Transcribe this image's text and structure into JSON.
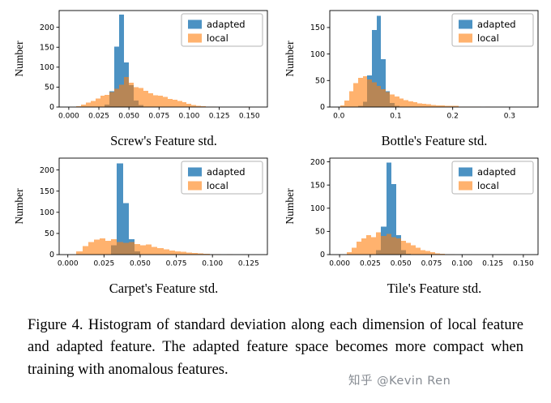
{
  "figure": {
    "caption": "Figure 4.  Histogram of standard deviation along each dimension of local feature and adapted feature.  The adapted feature space becomes more compact when training with anomalous features.",
    "watermark": "知乎 @Kevin Ren"
  },
  "chart_data": [
    {
      "type": "histogram",
      "title": "Screw's Feature std.",
      "ylabel": "Number",
      "legend_position": "upper right",
      "xlim": [
        -0.008,
        0.165
      ],
      "ylim": [
        0,
        242
      ],
      "x_ticks": [
        0,
        0.025,
        0.05,
        0.075,
        0.1,
        0.125,
        0.15
      ],
      "x_tick_labels": [
        "0.000",
        "0.025",
        "0.050",
        "0.075",
        "0.100",
        "0.125",
        "0.150"
      ],
      "y_ticks": [
        0,
        50,
        100,
        150,
        200
      ],
      "bin_start": 0.002,
      "bin_width": 0.004,
      "series": [
        {
          "name": "adapted",
          "color": "#1f77b4",
          "opacity": 0.8,
          "counts": [
            0,
            0,
            0,
            0,
            0,
            0,
            0,
            6,
            40,
            152,
            232,
            112,
            55,
            16,
            5,
            0,
            0,
            0,
            0,
            0,
            0,
            0,
            0,
            0,
            0,
            0,
            0,
            0,
            0,
            0,
            0,
            0,
            0,
            0,
            0,
            0,
            0,
            0,
            0,
            0
          ]
        },
        {
          "name": "local",
          "color": "#ff7f0e",
          "opacity": 0.6,
          "counts": [
            0,
            2,
            6,
            11,
            15,
            21,
            28,
            31,
            38,
            46,
            56,
            75,
            61,
            50,
            48,
            41,
            35,
            30,
            28,
            25,
            20,
            18,
            15,
            12,
            8,
            5,
            3,
            2,
            1,
            1,
            0,
            0,
            0,
            0,
            0,
            0,
            1,
            0,
            0,
            0
          ]
        }
      ]
    },
    {
      "type": "histogram",
      "title": "Bottle's Feature std.",
      "ylabel": "Number",
      "legend_position": "upper right",
      "xlim": [
        -0.016,
        0.35
      ],
      "ylim": [
        0,
        182
      ],
      "x_ticks": [
        0,
        0.1,
        0.2,
        0.3
      ],
      "x_tick_labels": [
        "0.0",
        "0.1",
        "0.2",
        "0.3"
      ],
      "y_ticks": [
        0,
        50,
        100,
        150
      ],
      "bin_start": 0.002,
      "bin_width": 0.008,
      "series": [
        {
          "name": "adapted",
          "color": "#1f77b4",
          "opacity": 0.8,
          "counts": [
            0,
            0,
            0,
            0,
            2,
            10,
            60,
            145,
            172,
            90,
            30,
            8,
            2,
            0,
            0,
            0,
            0,
            0,
            0,
            0,
            0,
            0,
            0,
            0,
            0,
            0,
            0,
            0,
            0,
            0,
            0,
            0,
            0,
            0,
            0,
            0,
            0,
            0,
            0,
            0,
            0,
            0
          ]
        },
        {
          "name": "local",
          "color": "#ff7f0e",
          "opacity": 0.6,
          "counts": [
            3,
            12,
            30,
            45,
            55,
            58,
            52,
            47,
            40,
            34,
            28,
            24,
            20,
            16,
            13,
            11,
            9,
            7,
            6,
            5,
            4,
            3,
            3,
            2,
            2,
            2,
            1,
            1,
            1,
            1,
            1,
            0,
            1,
            0,
            0,
            0,
            0,
            0,
            0,
            0,
            0,
            0
          ]
        }
      ]
    },
    {
      "type": "histogram",
      "title": "Carpet's Feature std.",
      "ylabel": "Number",
      "legend_position": "upper right",
      "xlim": [
        -0.006,
        0.138
      ],
      "ylim": [
        0,
        228
      ],
      "x_ticks": [
        0,
        0.025,
        0.05,
        0.075,
        0.1,
        0.125
      ],
      "x_tick_labels": [
        "0.000",
        "0.025",
        "0.050",
        "0.075",
        "0.100",
        "0.125"
      ],
      "y_ticks": [
        0,
        50,
        100,
        150,
        200
      ],
      "bin_start": 0.002,
      "bin_width": 0.004,
      "series": [
        {
          "name": "adapted",
          "color": "#1f77b4",
          "opacity": 0.8,
          "counts": [
            0,
            0,
            0,
            0,
            0,
            0,
            0,
            22,
            216,
            122,
            36,
            8,
            0,
            0,
            0,
            0,
            0,
            0,
            0,
            0,
            0,
            0,
            0,
            0,
            0,
            0,
            0,
            0,
            0,
            0,
            0,
            0,
            0
          ]
        },
        {
          "name": "local",
          "color": "#ff7f0e",
          "opacity": 0.6,
          "counts": [
            1,
            8,
            20,
            30,
            35,
            38,
            33,
            36,
            30,
            28,
            30,
            25,
            22,
            24,
            18,
            15,
            12,
            10,
            8,
            7,
            5,
            4,
            3,
            2,
            1,
            1,
            0,
            1,
            0,
            0,
            0,
            0,
            0
          ]
        }
      ]
    },
    {
      "type": "histogram",
      "title": "Tile's Feature std.",
      "ylabel": "Number",
      "legend_position": "upper right",
      "xlim": [
        -0.008,
        0.162
      ],
      "ylim": [
        0,
        208
      ],
      "x_ticks": [
        0,
        0.025,
        0.05,
        0.075,
        0.1,
        0.125,
        0.15
      ],
      "x_tick_labels": [
        "0.000",
        "0.025",
        "0.050",
        "0.075",
        "0.100",
        "0.125",
        "0.150"
      ],
      "y_ticks": [
        0,
        50,
        100,
        150,
        200
      ],
      "bin_start": 0.002,
      "bin_width": 0.004,
      "series": [
        {
          "name": "adapted",
          "color": "#1f77b4",
          "opacity": 0.8,
          "counts": [
            0,
            0,
            0,
            0,
            0,
            0,
            0,
            10,
            60,
            198,
            152,
            42,
            10,
            2,
            0,
            0,
            0,
            0,
            0,
            0,
            0,
            0,
            0,
            0,
            0,
            0,
            0,
            0,
            0,
            0,
            0,
            0,
            0,
            0,
            0,
            0,
            0,
            0,
            0
          ]
        },
        {
          "name": "local",
          "color": "#ff7f0e",
          "opacity": 0.6,
          "counts": [
            0,
            5,
            15,
            28,
            35,
            42,
            38,
            48,
            40,
            45,
            38,
            35,
            30,
            25,
            20,
            15,
            10,
            8,
            5,
            3,
            2,
            1,
            1,
            0,
            0,
            0,
            0,
            0,
            0,
            0,
            0,
            0,
            0,
            0,
            0,
            0,
            0,
            0,
            0
          ]
        }
      ]
    }
  ]
}
